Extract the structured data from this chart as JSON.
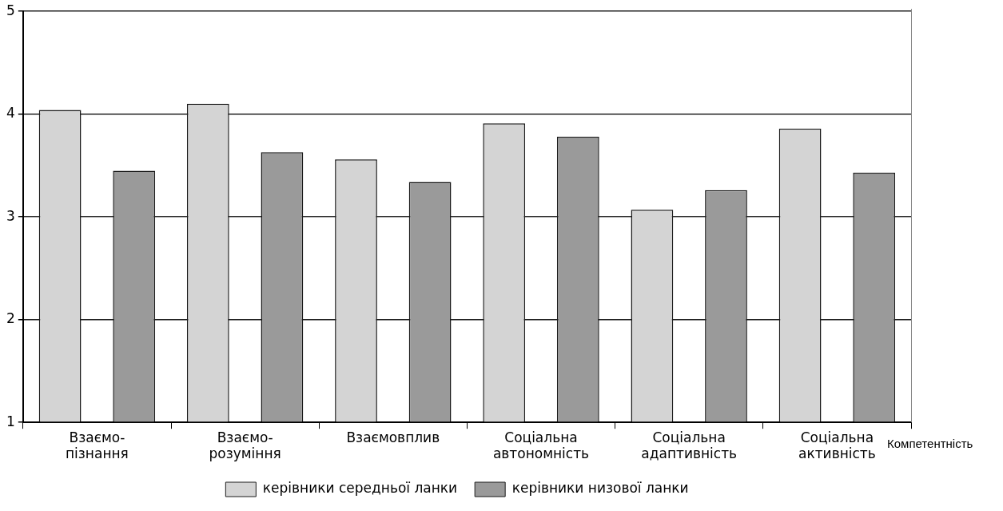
{
  "chart_data": {
    "type": "bar",
    "xlabel": "Компетентність",
    "categories": [
      "Взаємо-пізнання",
      "Взаємо-розуміння",
      "Взаємовплив",
      "Соціальна автономність",
      "Соціальна адаптивність",
      "Соціальна активність"
    ],
    "series": [
      {
        "name": "керівники середньої ланки",
        "color": "#d4d4d4",
        "values": [
          4.04,
          4.1,
          3.56,
          3.91,
          3.07,
          3.86
        ]
      },
      {
        "name": "керівники низової ланки",
        "color": "#9a9a9a",
        "values": [
          3.45,
          3.63,
          3.34,
          3.78,
          3.26,
          3.43
        ]
      }
    ],
    "ylim": [
      1,
      5
    ],
    "yticks": [
      1,
      2,
      3,
      4,
      5
    ],
    "grid": "y",
    "legend": "bottom"
  }
}
